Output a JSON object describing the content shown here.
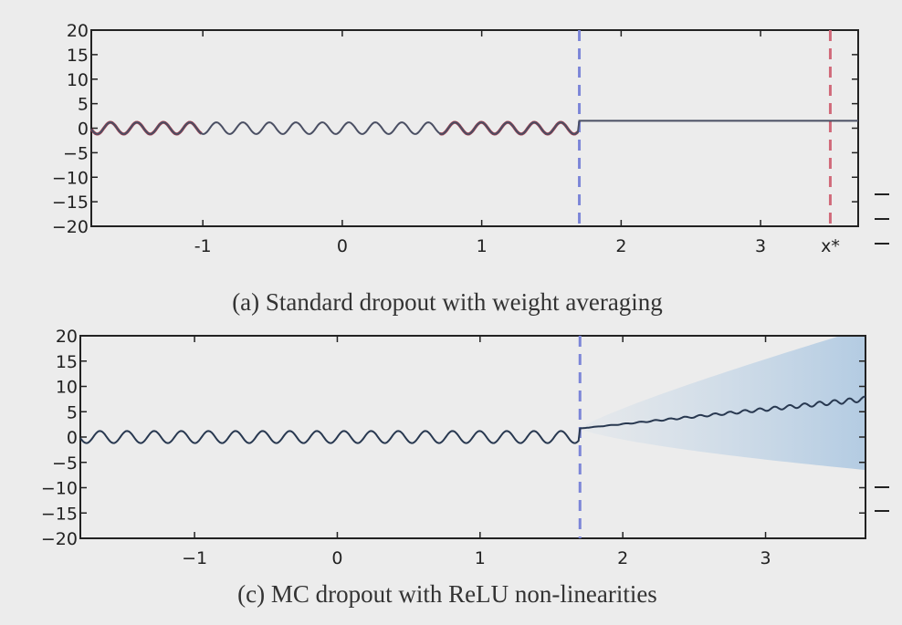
{
  "chart_data": [
    {
      "type": "line",
      "caption": "(a) Standard dropout with weight averaging",
      "xlim": [
        -1.8,
        3.7
      ],
      "ylim": [
        -20,
        20
      ],
      "xticks": [
        -1,
        0,
        1,
        2,
        3
      ],
      "xtick_labels": [
        "-1",
        "0",
        "1",
        "2",
        "3"
      ],
      "extra_xtick": {
        "value": 3.5,
        "label": "x*"
      },
      "yticks": [
        20,
        15,
        10,
        5,
        0,
        -5,
        -10,
        -15,
        -20
      ],
      "ytick_labels": [
        "20",
        "15",
        "10",
        "5",
        "0",
        "−5",
        "−10",
        "−15",
        "−20"
      ],
      "vlines": [
        {
          "x": 1.7,
          "color": "#7c86d8",
          "style": "dashed"
        },
        {
          "x": 3.5,
          "color": "#d16a7a",
          "style": "dashed"
        }
      ],
      "series": [
        {
          "name": "observed",
          "color": "#a83a4c",
          "x_range": [
            -1.8,
            1.7
          ],
          "segments": [
            [
              -1.8,
              -1.0
            ],
            [
              0.7,
              1.7
            ]
          ],
          "form": "sinusoid",
          "amplitude": 1.2
        },
        {
          "name": "prediction",
          "color": "#4a4f63",
          "x_range": [
            -1.8,
            3.7
          ],
          "form": "sinusoid-then-flat",
          "amplitude": 1.2,
          "flat_value": 1.5,
          "switch_x": 1.7
        }
      ]
    },
    {
      "type": "line",
      "caption": "(c) MC dropout with ReLU non-linearities",
      "xlim": [
        -1.8,
        3.7
      ],
      "ylim": [
        -20,
        20
      ],
      "xticks": [
        -1,
        0,
        1,
        2,
        3
      ],
      "xtick_labels": [
        "−1",
        "0",
        "1",
        "2",
        "3"
      ],
      "yticks": [
        20,
        15,
        10,
        5,
        0,
        -5,
        -10,
        -15,
        -20
      ],
      "ytick_labels": [
        "20",
        "15",
        "10",
        "5",
        "0",
        "−5",
        "−10",
        "−15",
        "−20"
      ],
      "vlines": [
        {
          "x": 1.7,
          "color": "#7c86d8",
          "style": "dashed"
        }
      ],
      "series": [
        {
          "name": "prediction",
          "color": "#283850",
          "x_range": [
            -1.8,
            3.7
          ],
          "form": "sinusoid-then-linear",
          "amplitude": 1.2,
          "switch_x": 1.7,
          "start_value": 1.7,
          "end_value": 7.5
        },
        {
          "name": "uncertainty",
          "color": "#4a8fd0",
          "form": "band",
          "x_range": [
            1.7,
            3.7
          ],
          "half_width_end": 14
        }
      ]
    }
  ]
}
